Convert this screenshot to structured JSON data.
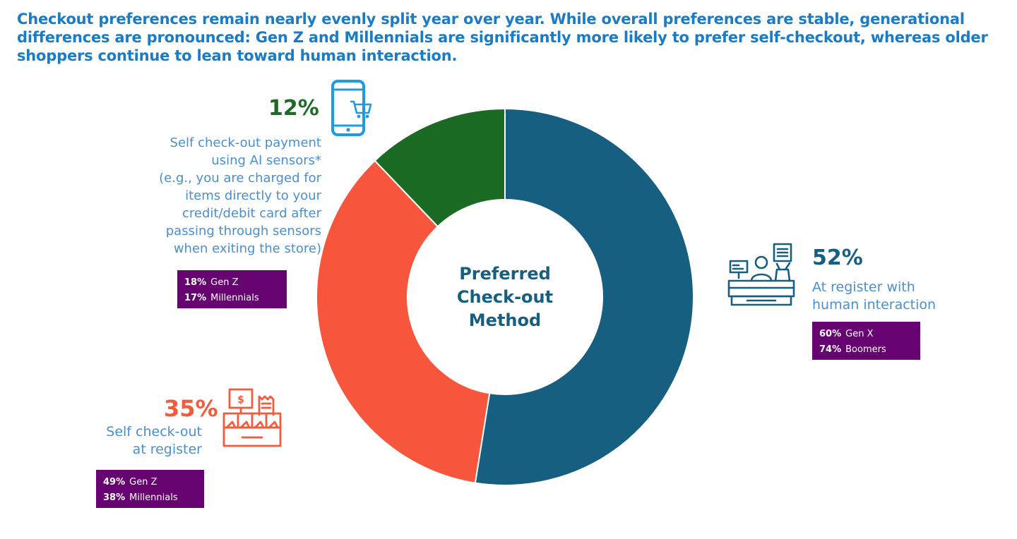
{
  "headline": {
    "line1": "Checkout preferences remain nearly evenly split year over year. While overall preferences are stable, generational",
    "line2": "differences are pronounced: Gen Z and Millennials are significantly more likely to prefer self-checkout, whereas older",
    "line3": "shoppers continue to lean toward human interaction."
  },
  "center_label": {
    "line1": "Preferred",
    "line2": "Check-out",
    "line3": "Method"
  },
  "segments": {
    "ai": {
      "pct_label": "12%",
      "desc_lines": [
        "Self check-out payment",
        "using AI sensors*",
        "(e.g., you are charged for",
        "items directly to your",
        "credit/debit card after",
        "passing through sensors",
        "when exiting the store)"
      ],
      "generations": [
        {
          "value": "18%",
          "label": "Gen Z"
        },
        {
          "value": "17%",
          "label": "Millennials"
        }
      ]
    },
    "register": {
      "pct_label": "52%",
      "desc_lines": [
        "At register with",
        "human interaction"
      ],
      "generations": [
        {
          "value": "60%",
          "label": "Gen X"
        },
        {
          "value": "74%",
          "label": "Boomers"
        }
      ]
    },
    "self": {
      "pct_label": "35%",
      "desc_lines": [
        "Self check-out",
        "at register"
      ],
      "generations": [
        {
          "value": "49%",
          "label": "Gen Z"
        },
        {
          "value": "38%",
          "label": "Millennials"
        }
      ]
    }
  },
  "icons": {
    "ai": "smartphone-cart-icon",
    "register": "cashier-icon",
    "self": "self-checkout-register-icon"
  },
  "chart_data": {
    "type": "pie",
    "style": "donut",
    "categories": [
      "At register with human interaction",
      "Self check-out at register",
      "Self check-out payment using AI sensors*"
    ],
    "values": [
      52,
      35,
      12
    ],
    "colors": [
      "#175f80",
      "#f8553d",
      "#1c6b25"
    ],
    "center_title": "Preferred Check-out Method"
  }
}
